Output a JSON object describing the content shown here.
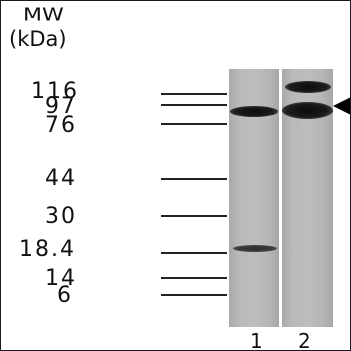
{
  "header": {
    "title": "MW",
    "unit": "(kDa)"
  },
  "markers": [
    {
      "label": "116",
      "kda": 116
    },
    {
      "label": "97",
      "kda": 97
    },
    {
      "label": "76",
      "kda": 76
    },
    {
      "label": "44",
      "kda": 44
    },
    {
      "label": "30",
      "kda": 30
    },
    {
      "label": "18.4",
      "kda": 18.4
    },
    {
      "label": "14",
      "kda": 14
    },
    {
      "label": "6",
      "kda": 6
    }
  ],
  "lanes": [
    {
      "label": "1"
    },
    {
      "label": "2"
    }
  ],
  "indicator": {
    "icon": "left-arrow-icon",
    "color": "#000000"
  }
}
